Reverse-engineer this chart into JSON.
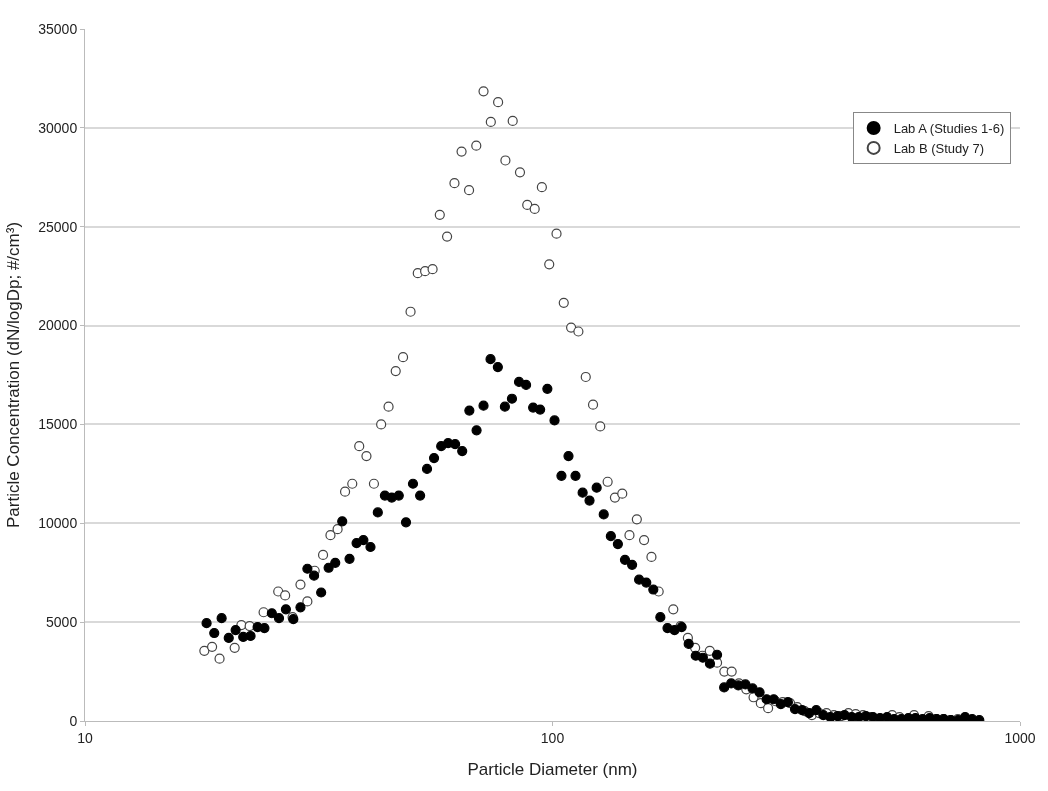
{
  "chart_data": {
    "type": "scatter",
    "xlabel": "Particle Diameter (nm)",
    "ylabel": "Particle Concentration (dN/logDp; #/cm³)",
    "log": "x",
    "xlim": [
      10,
      1000
    ],
    "xticks": [
      10,
      100,
      1000
    ],
    "ylim": [
      0,
      35000
    ],
    "yticks": [
      0,
      5000,
      10000,
      15000,
      20000,
      25000,
      30000,
      35000
    ],
    "grid": "y",
    "legend": "top right",
    "series": [
      {
        "name": "Lab A (Studies 1-6)",
        "color": "#000000",
        "marker": "circle",
        "x": [
          18.2,
          18.9,
          19.6,
          20.3,
          21.0,
          21.8,
          22.6,
          23.4,
          24.2,
          25.1,
          26.0,
          26.9,
          27.9,
          28.9,
          29.9,
          30.9,
          32.0,
          33.2,
          34.3,
          35.5,
          36.8,
          38.1,
          39.4,
          40.8,
          42.3,
          43.8,
          45.3,
          46.9,
          48.6,
          50.3,
          52.1,
          53.9,
          55.8,
          57.8,
          59.8,
          61.9,
          64.1,
          66.4,
          68.8,
          71.2,
          73.7,
          76.4,
          79.1,
          81.9,
          84.8,
          87.8,
          90.9,
          94.1,
          97.5,
          101,
          104.5,
          108.2,
          112,
          116,
          120,
          124.3,
          128.7,
          133.3,
          138,
          142.9,
          148,
          153.2,
          158.7,
          164.3,
          170.1,
          176.2,
          182.4,
          188.9,
          195.6,
          202.5,
          209.7,
          217.2,
          224.9,
          232.9,
          241.1,
          249.7,
          258.6,
          267.8,
          277.3,
          287.1,
          297.3,
          307.9,
          318.8,
          330.2,
          341.9,
          354,
          366.6,
          379.6,
          393.1,
          407.1,
          421.5,
          436.5,
          452,
          468,
          484.7,
          501.9,
          519.7,
          538.2,
          557.3,
          577.1,
          597.6,
          618.9,
          640.9,
          663.6,
          687.2,
          711.6,
          736.9,
          763.1,
          790.2,
          818.3
        ],
        "values": [
          4950,
          4450,
          5200,
          4200,
          4600,
          4250,
          4300,
          4750,
          4700,
          5450,
          5200,
          5650,
          5150,
          5750,
          7700,
          7350,
          6500,
          7750,
          8000,
          10100,
          8200,
          9000,
          9150,
          8800,
          10550,
          11400,
          11300,
          11400,
          10050,
          12000,
          11400,
          12750,
          13300,
          13900,
          14050,
          14000,
          13650,
          15700,
          14700,
          15950,
          18300,
          17900,
          15900,
          16300,
          17150,
          17000,
          15850,
          15750,
          16800,
          15200,
          12400,
          13400,
          12400,
          11550,
          11150,
          11800,
          10450,
          9350,
          8950,
          8150,
          7900,
          7150,
          7000,
          6650,
          5250,
          4700,
          4600,
          4750,
          3900,
          3300,
          3200,
          2900,
          3350,
          1700,
          1900,
          1800,
          1850,
          1650,
          1450,
          1100,
          1100,
          850,
          950,
          600,
          550,
          400,
          550,
          300,
          200,
          250,
          300,
          200,
          200,
          250,
          200,
          150,
          200,
          100,
          100,
          150,
          150,
          100,
          150,
          100,
          100,
          50,
          50,
          200,
          100,
          50
        ]
      },
      {
        "name": "Lab B (Study 7)",
        "color": "#444444",
        "marker": "circle-open",
        "x": [
          18.0,
          18.7,
          19.4,
          20.9,
          21.6,
          22.5,
          24.1,
          25.9,
          26.8,
          27.8,
          28.9,
          29.9,
          31.0,
          32.3,
          33.5,
          34.7,
          36.0,
          37.3,
          38.6,
          40.0,
          41.5,
          43.0,
          44.6,
          46.2,
          47.9,
          49.7,
          51.5,
          53.4,
          55.4,
          57.4,
          59.5,
          61.7,
          63.9,
          66.3,
          68.7,
          71.2,
          73.8,
          76.5,
          79.3,
          82.2,
          85.2,
          88.3,
          91.6,
          94.9,
          98.4,
          102,
          105.7,
          109.6,
          113.6,
          117.8,
          122.1,
          126.5,
          131.2,
          136,
          141,
          146.1,
          151.5,
          157,
          162.8,
          168.7,
          181.3,
          187.9,
          194.8,
          201.9,
          209.3,
          217,
          224.9,
          233.1,
          241.7,
          250.5,
          259.7,
          269.2,
          279,
          289.2,
          299.8,
          310.8,
          322.2,
          333.9,
          346.2,
          358.8,
          372,
          385.6,
          399.7,
          414.3,
          429.5,
          445.2,
          461.5,
          478.4,
          495.9,
          514,
          532.8,
          552.3,
          572.5,
          593.5,
          615.2,
          637.7,
          661,
          685.2,
          710.2,
          736.2
        ],
        "values": [
          3550,
          3750,
          3150,
          3700,
          4850,
          4800,
          5500,
          6550,
          6350,
          5250,
          6900,
          6050,
          7600,
          8400,
          9400,
          9700,
          11600,
          12000,
          13900,
          13400,
          12000,
          15000,
          15900,
          17700,
          18400,
          20700,
          22650,
          22750,
          22850,
          25600,
          24500,
          27200,
          28800,
          26850,
          29100,
          31850,
          30300,
          31300,
          28350,
          30350,
          27750,
          26100,
          25900,
          27000,
          23100,
          24650,
          21150,
          19900,
          19700,
          17400,
          16000,
          14900,
          12100,
          11300,
          11500,
          9400,
          10200,
          9150,
          8300,
          6550,
          5650,
          4800,
          4200,
          3700,
          3300,
          3550,
          2950,
          2500,
          2500,
          1900,
          1600,
          1200,
          900,
          650,
          1000,
          950,
          900,
          700,
          500,
          300,
          400,
          400,
          300,
          250,
          400,
          350,
          300,
          200,
          null,
          null,
          300,
          200,
          null,
          300,
          null,
          250,
          100,
          100,
          50,
          100
        ]
      }
    ]
  }
}
